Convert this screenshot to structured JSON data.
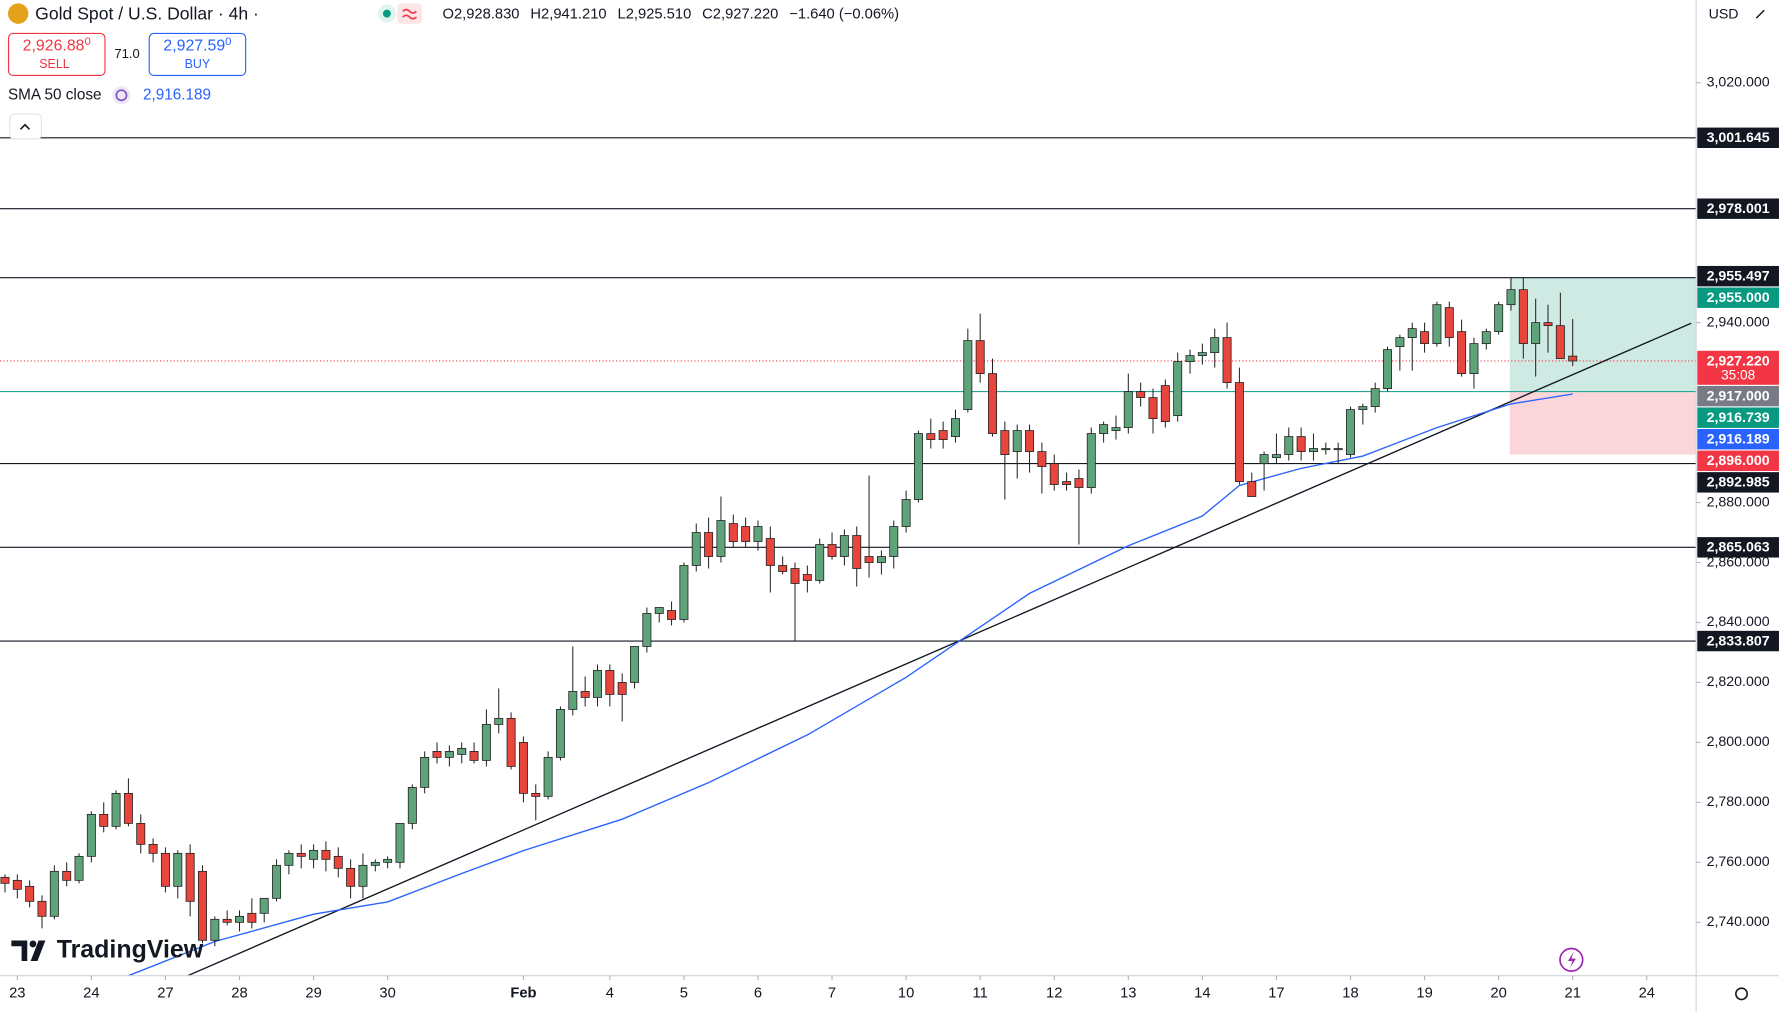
{
  "header": {
    "symbol": "Gold Spot / U.S. Dollar · 4h ·",
    "open": "O2,928.830",
    "high": "H2,941.210",
    "low": "L2,925.510",
    "close": "C2,927.220",
    "change": "−1.640 (−0.06%)",
    "sell_price": "2,926.88",
    "sell_price_sup": "0",
    "sell_label": "SELL",
    "spread": "71.0",
    "buy_price": "2,927.59",
    "buy_price_sup": "0",
    "buy_label": "BUY",
    "indicator": "SMA 50 close",
    "indicator_value": "2,916.189",
    "currency": "USD",
    "brand": "TradingView"
  },
  "chart_data": {
    "type": "candlestick",
    "x": [
      0,
      1,
      2,
      3,
      4,
      5,
      6,
      7,
      8,
      9,
      10,
      11,
      12,
      13,
      14,
      15,
      16,
      17,
      18,
      19,
      20,
      21,
      22,
      23,
      24,
      25,
      26,
      27,
      28,
      29,
      30,
      31,
      32,
      33,
      34,
      35,
      36,
      37,
      38,
      39,
      40,
      41,
      42,
      43,
      44,
      45,
      46,
      47,
      48,
      49,
      50,
      51,
      52,
      53,
      54,
      55,
      56,
      57,
      58,
      59,
      60,
      61,
      62,
      63,
      64,
      65,
      66,
      67,
      68,
      69,
      70,
      71,
      72,
      73,
      74,
      75,
      76,
      77,
      78,
      79,
      80,
      81,
      82,
      83,
      84,
      85,
      86,
      87,
      88,
      89,
      90,
      91,
      92,
      93,
      94,
      95,
      96,
      97,
      98,
      99,
      100,
      101,
      102,
      103,
      104,
      105,
      106,
      107,
      108,
      109,
      110,
      111,
      112,
      113,
      114,
      115,
      116,
      117,
      118,
      119,
      120,
      121,
      122,
      123,
      124,
      125,
      126,
      127
    ],
    "open": [
      2755,
      2754,
      2752,
      2747,
      2742,
      2757,
      2754,
      2762,
      2776,
      2772,
      2783,
      2773,
      2766,
      2763,
      2752,
      2763,
      2757,
      2734,
      2741,
      2740,
      2743,
      2743,
      2748,
      2759,
      2763,
      2761,
      2764,
      2762,
      2758,
      2752,
      2759,
      2760,
      2760,
      2773,
      2785,
      2797,
      2795,
      2796,
      2797,
      2794,
      2806,
      2808,
      2800,
      2783,
      2782,
      2795,
      2811,
      2817,
      2815,
      2824,
      2820,
      2820,
      2832,
      2843,
      2844,
      2841,
      2859,
      2870,
      2862,
      2873,
      2872,
      2867,
      2868,
      2859,
      2858,
      2856,
      2854,
      2866,
      2862,
      2869,
      2862,
      2860,
      2862,
      2872,
      2881,
      2903,
      2904,
      2902,
      2911,
      2934,
      2923,
      2904,
      2897,
      2904,
      2897,
      2893,
      2887,
      2888,
      2885,
      2903,
      2904,
      2905,
      2917,
      2915,
      2919,
      2909,
      2927,
      2929,
      2930,
      2935,
      2920,
      2887,
      2893,
      2895,
      2896,
      2902,
      2897,
      2898,
      2898,
      2896,
      2911,
      2912,
      2918,
      2932,
      2935,
      2937,
      2933,
      2945,
      2937,
      2923,
      2933,
      2937,
      2946,
      2951,
      2933,
      2940,
      2939,
      2928.83
    ],
    "high": [
      2756,
      2756,
      2754,
      2749,
      2759,
      2760,
      2763,
      2777,
      2780,
      2784,
      2788,
      2776,
      2768,
      2765,
      2764,
      2766,
      2759,
      2742,
      2744,
      2744,
      2748,
      2748,
      2761,
      2764,
      2766,
      2766,
      2767,
      2765,
      2761,
      2763,
      2761,
      2762,
      2773,
      2786,
      2797,
      2800,
      2799,
      2800,
      2800,
      2811,
      2818,
      2810,
      2802,
      2786,
      2797,
      2812,
      2832,
      2822,
      2826,
      2826,
      2823,
      2832,
      2845,
      2845,
      2847,
      2860,
      2873,
      2875,
      2882,
      2876,
      2875,
      2874,
      2872,
      2862,
      2860,
      2859,
      2868,
      2870,
      2871,
      2872,
      2889,
      2864,
      2874,
      2884,
      2904,
      2908,
      2907,
      2911,
      2938,
      2943,
      2928,
      2907,
      2906,
      2906,
      2900,
      2896,
      2890,
      2891,
      2905,
      2907,
      2909,
      2923,
      2920,
      2918,
      2921,
      2930,
      2931,
      2933,
      2938,
      2940,
      2925,
      2890,
      2897,
      2903,
      2905,
      2905,
      2903,
      2900,
      2900,
      2912,
      2913,
      2920,
      2932,
      2936,
      2940,
      2940,
      2947,
      2947,
      2941,
      2935,
      2938,
      2947,
      2955,
      2955,
      2948,
      2946,
      2950,
      2941.21
    ],
    "low": [
      2750,
      2748,
      2745,
      2738,
      2741,
      2752,
      2753,
      2760,
      2770,
      2771,
      2772,
      2763,
      2760,
      2750,
      2748,
      2742,
      2733,
      2732,
      2739,
      2737,
      2738,
      2740,
      2747,
      2756,
      2758,
      2758,
      2757,
      2755,
      2748,
      2748,
      2757,
      2758,
      2758,
      2771,
      2783,
      2793,
      2792,
      2793,
      2793,
      2792,
      2803,
      2791,
      2780,
      2774,
      2781,
      2794,
      2809,
      2812,
      2812,
      2812,
      2807,
      2818,
      2830,
      2840,
      2839,
      2840,
      2857,
      2858,
      2860,
      2865,
      2865,
      2864,
      2850,
      2856,
      2834,
      2850,
      2853,
      2861,
      2859,
      2852,
      2855,
      2856,
      2858,
      2870,
      2880,
      2898,
      2898,
      2900,
      2910,
      2920,
      2902,
      2881,
      2888,
      2890,
      2883,
      2884,
      2884,
      2866,
      2883,
      2900,
      2901,
      2903,
      2912,
      2903,
      2905,
      2907,
      2923,
      2926,
      2925,
      2918,
      2886,
      2882,
      2884,
      2893,
      2894,
      2894,
      2894,
      2896,
      2893,
      2895,
      2906,
      2910,
      2917,
      2924,
      2924,
      2930,
      2932,
      2932,
      2922,
      2918,
      2931,
      2936,
      2944,
      2928,
      2922,
      2930,
      2928,
      2925.51
    ],
    "close": [
      2753,
      2751,
      2747,
      2742,
      2757,
      2754,
      2762,
      2776,
      2772,
      2783,
      2773,
      2766,
      2763,
      2752,
      2763,
      2747,
      2734,
      2741,
      2740,
      2742,
      2740,
      2748,
      2759,
      2763,
      2762,
      2764,
      2761,
      2758,
      2752,
      2759,
      2760,
      2761,
      2773,
      2785,
      2795,
      2795,
      2797,
      2798,
      2794,
      2806,
      2808,
      2792,
      2783,
      2782,
      2795,
      2811,
      2817,
      2815,
      2824,
      2816,
      2816,
      2832,
      2843,
      2845,
      2841,
      2859,
      2870,
      2862,
      2874,
      2867,
      2867,
      2872,
      2859,
      2857,
      2853,
      2854,
      2866,
      2862,
      2869,
      2858,
      2860,
      2862,
      2872,
      2881,
      2903,
      2901,
      2901,
      2908,
      2934,
      2923,
      2903,
      2896,
      2904,
      2897,
      2892,
      2886,
      2886,
      2885,
      2903,
      2906,
      2905,
      2917,
      2915,
      2908,
      2907,
      2927,
      2929,
      2930,
      2935,
      2920,
      2887,
      2882,
      2896,
      2896,
      2902,
      2897,
      2898,
      2898,
      2898,
      2911,
      2912,
      2918,
      2931,
      2935,
      2938,
      2933,
      2946,
      2935,
      2923,
      2933,
      2937,
      2946,
      2951,
      2933,
      2940,
      2939,
      2928,
      2927.22
    ],
    "up_color": "#5fa37b",
    "down_color": "#e8453c",
    "sma": {
      "name": "SMA 50 close",
      "color": "#2962ff",
      "x": [
        10,
        17,
        25,
        31,
        37,
        42,
        50,
        57,
        65,
        73,
        78,
        83,
        91,
        97,
        100,
        105,
        110,
        116,
        122,
        127
      ],
      "values": [
        2722.2,
        2733.6,
        2742.7,
        2746.8,
        2756.3,
        2763.9,
        2774.4,
        2786.6,
        2802.5,
        2821.7,
        2835.7,
        2849.7,
        2865.6,
        2875.5,
        2885.7,
        2891.4,
        2895.5,
        2905,
        2912.9,
        2916.2
      ]
    },
    "trendline": {
      "x": [
        14.8,
        136.6
      ],
      "values": [
        2722.2,
        2939.8
      ],
      "color": "#131722"
    },
    "levels": [
      3001.645,
      2978.001,
      2955.0,
      2892.985,
      2865.063,
      2833.807
    ],
    "level_color": "#131722",
    "entry_line": 2917,
    "entry_color": "#26a69a",
    "current_price": 2927.22,
    "current_color": "#f23645",
    "position": {
      "start": 121.9,
      "entry": 2917,
      "target": 2955,
      "stop": 2896,
      "target_color": "#cfe9e3",
      "stop_color": "#fad6da"
    },
    "xlim": [
      -0.4,
      137
    ],
    "ylim": [
      2722.2,
      3047.6
    ],
    "yticks": [
      {
        "value": 3020,
        "label": "3,020.000"
      },
      {
        "value": 2940,
        "label": "2,940.000"
      },
      {
        "value": 2880,
        "label": "2,880.000"
      },
      {
        "value": 2860,
        "label": "2,860.000"
      },
      {
        "value": 2840,
        "label": "2,840.000"
      },
      {
        "value": 2820,
        "label": "2,820.000"
      },
      {
        "value": 2800,
        "label": "2,800.000"
      },
      {
        "value": 2780,
        "label": "2,780.000"
      },
      {
        "value": 2760,
        "label": "2,760.000"
      },
      {
        "value": 2740,
        "label": "2,740.000"
      }
    ],
    "xticks": [
      {
        "value": 1,
        "label": "23"
      },
      {
        "value": 7,
        "label": "24"
      },
      {
        "value": 13,
        "label": "27"
      },
      {
        "value": 19,
        "label": "28"
      },
      {
        "value": 25,
        "label": "29"
      },
      {
        "value": 31,
        "label": "30"
      },
      {
        "value": 42,
        "label": "Feb"
      },
      {
        "value": 49,
        "label": "4"
      },
      {
        "value": 55,
        "label": "5"
      },
      {
        "value": 61,
        "label": "6"
      },
      {
        "value": 67,
        "label": "7"
      },
      {
        "value": 73,
        "label": "10"
      },
      {
        "value": 79,
        "label": "11"
      },
      {
        "value": 85,
        "label": "12"
      },
      {
        "value": 91,
        "label": "13"
      },
      {
        "value": 97,
        "label": "14"
      },
      {
        "value": 103,
        "label": "17"
      },
      {
        "value": 109,
        "label": "18"
      },
      {
        "value": 115,
        "label": "19"
      },
      {
        "value": 121,
        "label": "20"
      },
      {
        "value": 127,
        "label": "21"
      },
      {
        "value": 133,
        "label": "24"
      }
    ],
    "badges": [
      {
        "value": 3001.645,
        "label": "3,001.645",
        "color": "#131722"
      },
      {
        "value": 2978.001,
        "label": "2,978.001",
        "color": "#131722"
      },
      {
        "value": 2955.497,
        "label": "2,955.497",
        "color": "#131722"
      },
      {
        "value": 2955.0,
        "label": "2,955.000",
        "color": "#089981"
      },
      {
        "value": 2927.22,
        "label": "2,927.220",
        "sub": "35:08",
        "color": "#f23645"
      },
      {
        "value": 2917.0,
        "label": "2,917.000",
        "color": "#787b86"
      },
      {
        "value": 2916.739,
        "label": "2,916.739",
        "color": "#089981"
      },
      {
        "value": 2916.189,
        "label": "2,916.189",
        "color": "#2962ff"
      },
      {
        "value": 2896.0,
        "label": "2,896.000",
        "color": "#f23645"
      },
      {
        "value": 2892.985,
        "label": "2,892.985",
        "color": "#131722"
      },
      {
        "value": 2865.063,
        "label": "2,865.063",
        "color": "#131722"
      },
      {
        "value": 2833.807,
        "label": "2,833.807",
        "color": "#131722"
      }
    ]
  }
}
